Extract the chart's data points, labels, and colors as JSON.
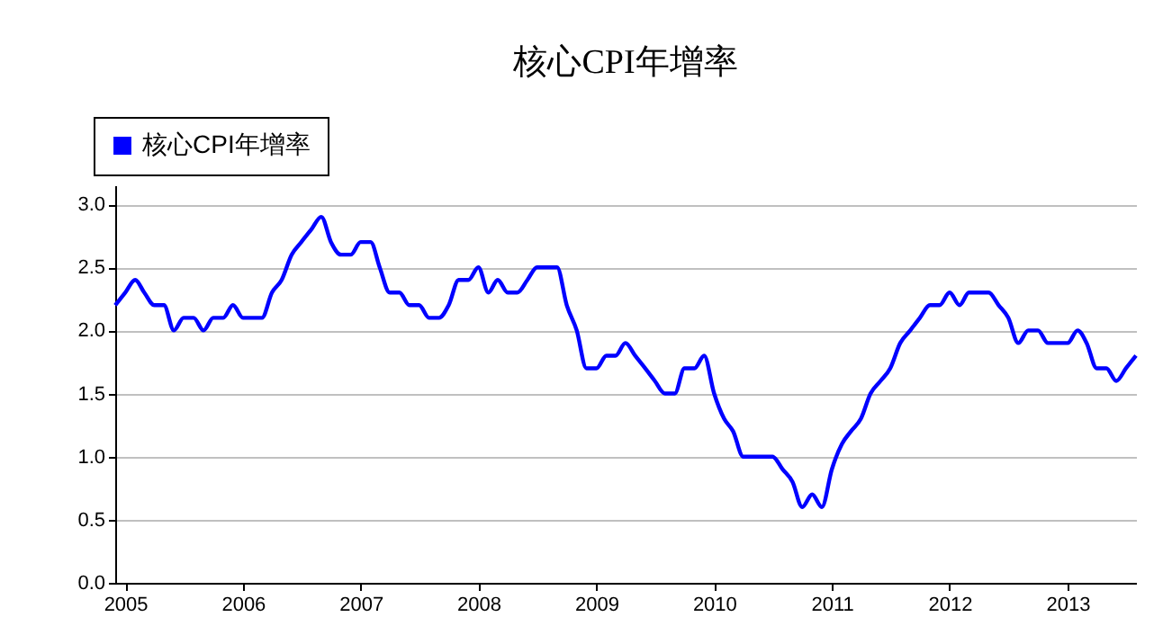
{
  "chart_data": {
    "type": "line",
    "title": "核心CPI年增率",
    "x": [
      "2004-12",
      "2005-01",
      "2005-02",
      "2005-03",
      "2005-04",
      "2005-05",
      "2005-06",
      "2005-07",
      "2005-08",
      "2005-09",
      "2005-10",
      "2005-11",
      "2005-12",
      "2006-01",
      "2006-02",
      "2006-03",
      "2006-04",
      "2006-05",
      "2006-06",
      "2006-07",
      "2006-08",
      "2006-09",
      "2006-10",
      "2006-11",
      "2006-12",
      "2007-01",
      "2007-02",
      "2007-03",
      "2007-04",
      "2007-05",
      "2007-06",
      "2007-07",
      "2007-08",
      "2007-09",
      "2007-10",
      "2007-11",
      "2007-12",
      "2008-01",
      "2008-02",
      "2008-03",
      "2008-04",
      "2008-05",
      "2008-06",
      "2008-07",
      "2008-08",
      "2008-09",
      "2008-10",
      "2008-11",
      "2008-12",
      "2009-01",
      "2009-02",
      "2009-03",
      "2009-04",
      "2009-05",
      "2009-06",
      "2009-07",
      "2009-08",
      "2009-09",
      "2009-10",
      "2009-11",
      "2009-12",
      "2010-01",
      "2010-02",
      "2010-03",
      "2010-04",
      "2010-05",
      "2010-06",
      "2010-07",
      "2010-08",
      "2010-09",
      "2010-10",
      "2010-11",
      "2010-12",
      "2011-01",
      "2011-02",
      "2011-03",
      "2011-04",
      "2011-05",
      "2011-06",
      "2011-07",
      "2011-08",
      "2011-09",
      "2011-10",
      "2011-11",
      "2011-12",
      "2012-01",
      "2012-02",
      "2012-03",
      "2012-04",
      "2012-05",
      "2012-06",
      "2012-07",
      "2012-08",
      "2012-09",
      "2012-10",
      "2012-11",
      "2012-12",
      "2013-01",
      "2013-02",
      "2013-03",
      "2013-04",
      "2013-05",
      "2013-06",
      "2013-07",
      "2013-08"
    ],
    "series": [
      {
        "name": "核心CPI年增率",
        "color": "#0000ff",
        "values": [
          2.2,
          2.3,
          2.4,
          2.3,
          2.2,
          2.2,
          2.0,
          2.1,
          2.1,
          2.0,
          2.1,
          2.1,
          2.2,
          2.1,
          2.1,
          2.1,
          2.3,
          2.4,
          2.6,
          2.7,
          2.8,
          2.9,
          2.7,
          2.6,
          2.6,
          2.7,
          2.7,
          2.5,
          2.3,
          2.3,
          2.2,
          2.2,
          2.1,
          2.1,
          2.2,
          2.4,
          2.4,
          2.5,
          2.3,
          2.4,
          2.3,
          2.3,
          2.4,
          2.5,
          2.5,
          2.5,
          2.2,
          2.0,
          1.7,
          1.7,
          1.8,
          1.8,
          1.9,
          1.8,
          1.7,
          1.6,
          1.5,
          1.5,
          1.7,
          1.7,
          1.8,
          1.5,
          1.3,
          1.2,
          1.0,
          1.0,
          1.0,
          1.0,
          0.9,
          0.8,
          0.6,
          0.7,
          0.6,
          0.9,
          1.1,
          1.2,
          1.3,
          1.5,
          1.6,
          1.7,
          1.9,
          2.0,
          2.1,
          2.2,
          2.2,
          2.3,
          2.2,
          2.3,
          2.3,
          2.3,
          2.2,
          2.1,
          1.9,
          2.0,
          2.0,
          1.9,
          1.9,
          1.9,
          2.0,
          1.9,
          1.7,
          1.7,
          1.6,
          1.7,
          1.8
        ]
      }
    ],
    "xlim": [
      "2004-12",
      "2013-08"
    ],
    "xticks": [
      {
        "value": "2005-01",
        "label": "2005"
      },
      {
        "value": "2006-01",
        "label": "2006"
      },
      {
        "value": "2007-01",
        "label": "2007"
      },
      {
        "value": "2008-01",
        "label": "2008"
      },
      {
        "value": "2009-01",
        "label": "2009"
      },
      {
        "value": "2010-01",
        "label": "2010"
      },
      {
        "value": "2011-01",
        "label": "2011"
      },
      {
        "value": "2012-01",
        "label": "2012"
      },
      {
        "value": "2013-01",
        "label": "2013"
      }
    ],
    "ylim": [
      0,
      3.15
    ],
    "yticks": [
      {
        "value": 0,
        "label": "0.0"
      },
      {
        "value": 0.5,
        "label": "0.5"
      },
      {
        "value": 1,
        "label": "1.0"
      },
      {
        "value": 1.5,
        "label": "1.5"
      },
      {
        "value": 2,
        "label": "2.0"
      },
      {
        "value": 2.5,
        "label": "2.5"
      },
      {
        "value": 3,
        "label": "3.0"
      }
    ],
    "grid": "y",
    "legend": "top left",
    "marker": "none",
    "line_style": "solid"
  }
}
